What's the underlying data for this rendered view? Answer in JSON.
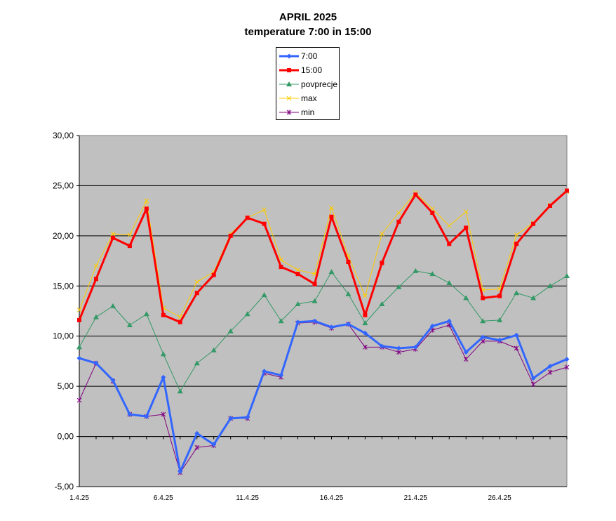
{
  "chart_data": {
    "type": "line",
    "title": "APRIL 2025",
    "subtitle": "temperature 7:00 in 15:00",
    "ylim": [
      -5,
      30
    ],
    "y_ticks": [
      "-5,00",
      "0,00",
      "5,00",
      "10,00",
      "15,00",
      "20,00",
      "25,00",
      "30,00"
    ],
    "y_tick_values": [
      -5,
      0,
      5,
      10,
      15,
      20,
      25,
      30
    ],
    "x": [
      1,
      2,
      3,
      4,
      5,
      6,
      7,
      8,
      9,
      10,
      11,
      12,
      13,
      14,
      15,
      16,
      17,
      18,
      19,
      20,
      21,
      22,
      23,
      24,
      25,
      26,
      27,
      28,
      29,
      30
    ],
    "x_tick_labels": [
      "1.4.25",
      "6.4.25",
      "11.4.25",
      "16.4.25",
      "21.4.25",
      "26.4.25"
    ],
    "x_tick_positions": [
      1,
      6,
      11,
      16,
      21,
      26
    ],
    "grid": true,
    "legend_position": "top-center",
    "plot_background": "#c0c0c0",
    "series": [
      {
        "name": "7:00",
        "color": "#3366ff",
        "marker": "diamond",
        "values": [
          7.8,
          7.3,
          5.6,
          2.2,
          2.0,
          5.9,
          -3.5,
          0.3,
          -0.8,
          1.8,
          1.9,
          6.5,
          6.1,
          11.4,
          11.5,
          10.9,
          11.2,
          10.3,
          9.0,
          8.8,
          8.9,
          11.0,
          11.5,
          8.4,
          9.9,
          9.6,
          10.1,
          5.8,
          7.0,
          7.7
        ]
      },
      {
        "name": "15:00",
        "color": "#ff0000",
        "marker": "square",
        "values": [
          11.6,
          15.7,
          19.8,
          19.0,
          22.7,
          12.1,
          11.4,
          14.3,
          16.1,
          20.0,
          21.8,
          21.2,
          16.9,
          16.2,
          15.2,
          21.9,
          17.4,
          12.1,
          17.3,
          21.4,
          24.1,
          22.3,
          19.2,
          20.8,
          13.8,
          14.0,
          19.2,
          21.2,
          23.0,
          24.5
        ]
      },
      {
        "name": "povprecje",
        "color": "#339966",
        "marker": "triangle",
        "values": [
          8.9,
          11.9,
          13.0,
          11.1,
          12.2,
          8.2,
          4.5,
          7.3,
          8.6,
          10.5,
          12.2,
          14.1,
          11.5,
          13.2,
          13.5,
          16.4,
          14.2,
          11.3,
          13.2,
          14.9,
          16.5,
          16.2,
          15.3,
          13.8,
          11.5,
          11.6,
          14.3,
          13.8,
          15.0,
          16.0
        ]
      },
      {
        "name": "max",
        "color": "#ffcc00",
        "marker": "x",
        "values": [
          12.6,
          17.0,
          20.2,
          20.1,
          23.5,
          12.8,
          11.9,
          15.4,
          16.4,
          20.2,
          21.8,
          22.6,
          17.6,
          16.6,
          16.2,
          22.8,
          18.0,
          14.0,
          20.2,
          22.3,
          24.3,
          22.7,
          21.0,
          22.4,
          14.6,
          14.7,
          20.1,
          21.3,
          23.1,
          24.4
        ]
      },
      {
        "name": "min",
        "color": "#800080",
        "marker": "star",
        "values": [
          3.6,
          7.3,
          5.5,
          2.2,
          2.0,
          2.2,
          -3.6,
          -1.1,
          -0.9,
          1.8,
          1.8,
          6.3,
          5.9,
          11.3,
          11.4,
          10.8,
          11.2,
          8.9,
          8.9,
          8.4,
          8.7,
          10.6,
          11.1,
          7.7,
          9.5,
          9.5,
          8.8,
          5.2,
          6.4,
          6.9
        ]
      }
    ]
  }
}
